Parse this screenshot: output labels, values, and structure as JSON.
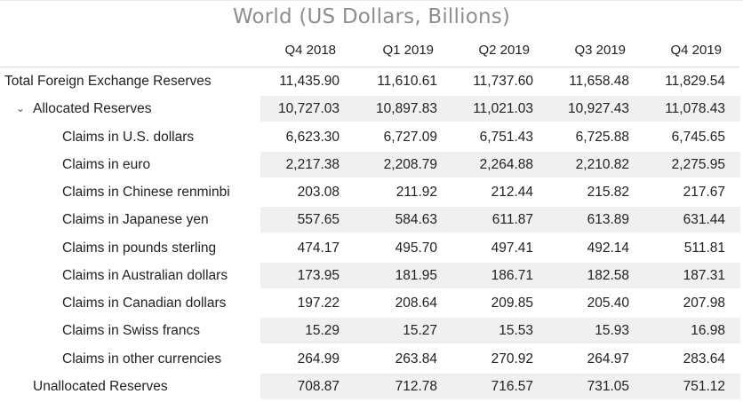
{
  "title": "World (US Dollars, Billions)",
  "columns": [
    "Q4 2018",
    "Q1 2019",
    "Q2 2019",
    "Q3 2019",
    "Q4 2019"
  ],
  "rows": [
    {
      "label": "Total Foreign Exchange Reserves",
      "values": [
        "11,435.90",
        "11,610.61",
        "11,737.60",
        "11,658.48",
        "11,829.54"
      ]
    },
    {
      "label": "Allocated Reserves",
      "values": [
        "10,727.03",
        "10,897.83",
        "11,021.03",
        "10,927.43",
        "11,078.43"
      ]
    },
    {
      "label": "Claims in U.S. dollars",
      "values": [
        "6,623.30",
        "6,727.09",
        "6,751.43",
        "6,725.88",
        "6,745.65"
      ]
    },
    {
      "label": "Claims in euro",
      "values": [
        "2,217.38",
        "2,208.79",
        "2,264.88",
        "2,210.82",
        "2,275.95"
      ]
    },
    {
      "label": "Claims in Chinese renminbi",
      "values": [
        "203.08",
        "211.92",
        "212.44",
        "215.82",
        "217.67"
      ]
    },
    {
      "label": "Claims in Japanese yen",
      "values": [
        "557.65",
        "584.63",
        "611.87",
        "613.89",
        "631.44"
      ]
    },
    {
      "label": "Claims in pounds sterling",
      "values": [
        "474.17",
        "495.70",
        "497.41",
        "492.14",
        "511.81"
      ]
    },
    {
      "label": "Claims in Australian dollars",
      "values": [
        "173.95",
        "181.95",
        "186.71",
        "182.58",
        "187.31"
      ]
    },
    {
      "label": "Claims in Canadian dollars",
      "values": [
        "197.22",
        "208.64",
        "209.85",
        "205.40",
        "207.98"
      ]
    },
    {
      "label": "Claims in Swiss francs",
      "values": [
        "15.29",
        "15.27",
        "15.53",
        "15.93",
        "16.98"
      ]
    },
    {
      "label": "Claims in other currencies",
      "values": [
        "264.99",
        "263.84",
        "270.92",
        "264.97",
        "283.64"
      ]
    },
    {
      "label": "Unallocated Reserves",
      "values": [
        "708.87",
        "712.78",
        "716.57",
        "731.05",
        "751.12"
      ]
    }
  ],
  "icons": {
    "allocated_toggle": "chevron-down-icon"
  }
}
